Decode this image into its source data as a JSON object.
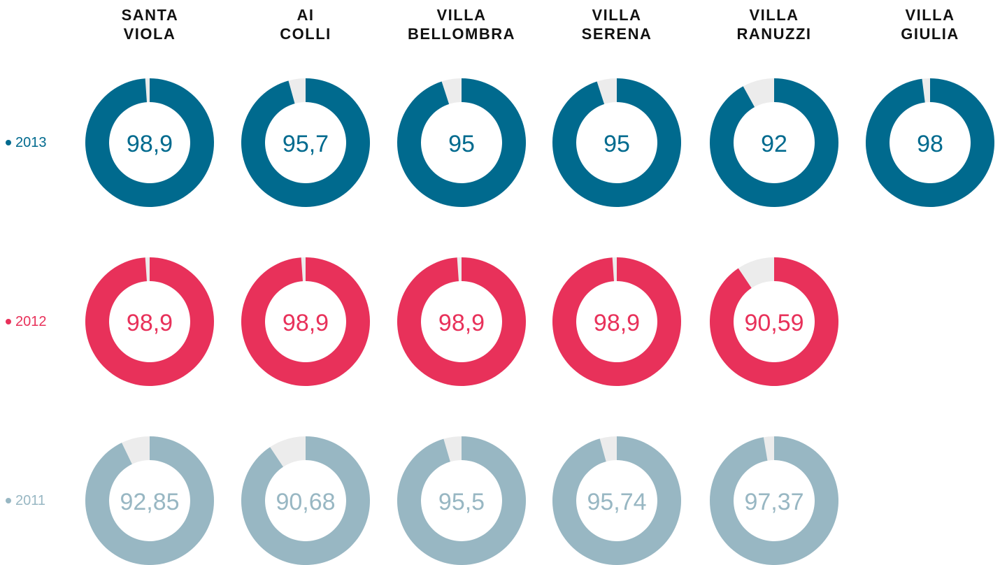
{
  "chart_data": {
    "type": "donut",
    "categories": [
      "SANTA VIOLA",
      "AI COLLI",
      "VILLA BELLOMBRA",
      "VILLA SERENA",
      "VILLA RANUZZI",
      "VILLA GIULIA"
    ],
    "series": [
      {
        "name": "2013",
        "color": "#006a8e",
        "values": [
          98.9,
          95.7,
          95,
          95,
          92,
          98
        ],
        "value_labels": [
          "98,9",
          "95,7",
          "95",
          "95",
          "92",
          "98"
        ]
      },
      {
        "name": "2012",
        "color": "#e8315a",
        "values": [
          98.9,
          98.9,
          98.9,
          98.9,
          90.59,
          null
        ],
        "value_labels": [
          "98,9",
          "98,9",
          "98,9",
          "98,9",
          "90,59",
          null
        ]
      },
      {
        "name": "2011",
        "color": "#98b7c3",
        "values": [
          92.85,
          90.68,
          95.5,
          95.74,
          97.37,
          null
        ],
        "value_labels": [
          "92,85",
          "90,68",
          "95,5",
          "95,74",
          "97,37",
          null
        ]
      }
    ],
    "ylim": [
      0,
      100
    ]
  }
}
